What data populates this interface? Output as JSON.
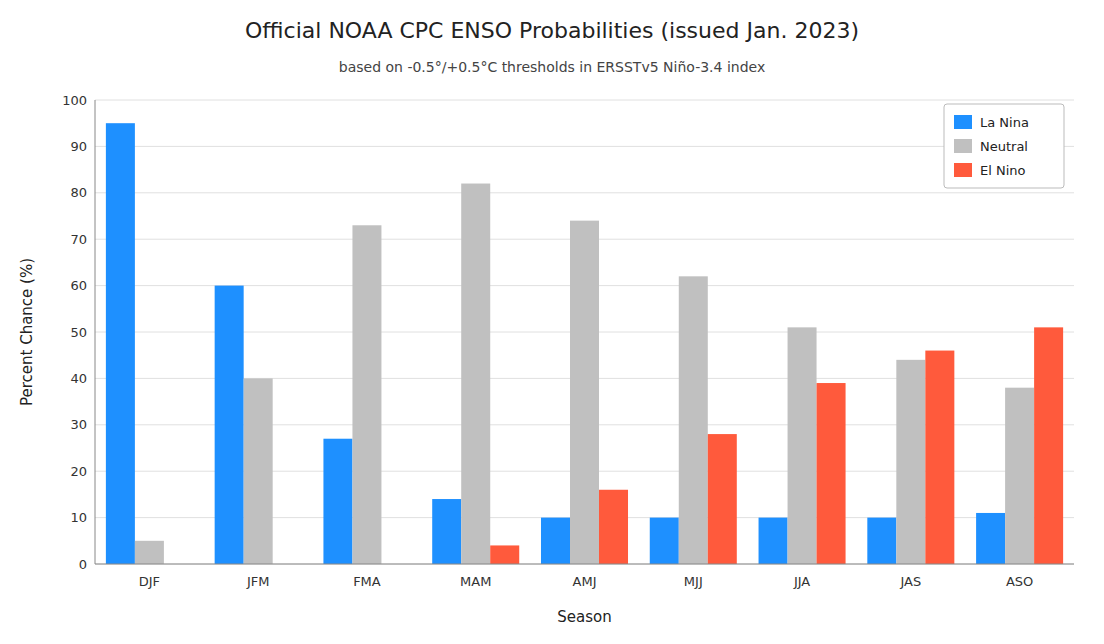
{
  "chart_data": {
    "type": "bar",
    "title": "Official NOAA CPC ENSO Probabilities (issued Jan. 2023)",
    "subtitle": "based on -0.5°/+0.5°C thresholds in ERSSTv5 Niño-3.4 index",
    "xlabel": "Season",
    "ylabel": "Percent Chance (%)",
    "categories": [
      "DJF",
      "JFM",
      "FMA",
      "MAM",
      "AMJ",
      "MJJ",
      "JJA",
      "JAS",
      "ASO"
    ],
    "series": [
      {
        "name": "La Nina",
        "color": "#1e90ff",
        "values": [
          95,
          60,
          27,
          14,
          10,
          10,
          10,
          10,
          11
        ]
      },
      {
        "name": "Neutral",
        "color": "#c0c0c0",
        "values": [
          5,
          40,
          73,
          82,
          74,
          62,
          51,
          44,
          38
        ]
      },
      {
        "name": "El Nino",
        "color": "#ff5a3c",
        "values": [
          0,
          0,
          0,
          4,
          16,
          28,
          39,
          46,
          51
        ]
      }
    ],
    "ylim": [
      0,
      100
    ],
    "yticks": [
      0,
      10,
      20,
      30,
      40,
      50,
      60,
      70,
      80,
      90,
      100
    ],
    "grid": true,
    "legend": "upper right"
  }
}
